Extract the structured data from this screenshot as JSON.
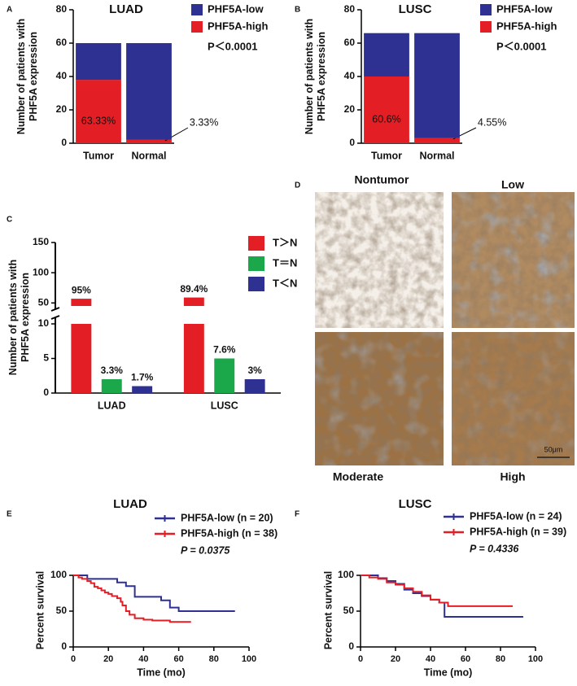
{
  "chart_data": [
    {
      "panel_label": "A",
      "type": "bar",
      "stacked": true,
      "title": "LUAD",
      "ylabel": [
        "Number of patients with",
        "PHF5A expression"
      ],
      "categories": [
        "Tumor",
        "Normal"
      ],
      "series": [
        {
          "name": "PHF5A-high",
          "color": "#e31e24",
          "values": [
            38,
            2
          ],
          "value_labels": [
            "63.33%",
            "3.33%"
          ]
        },
        {
          "name": "PHF5A-low",
          "color": "#2e3192",
          "values": [
            22,
            58
          ]
        }
      ],
      "ylim": [
        0,
        80
      ],
      "yticks": [
        0,
        20,
        40,
        60,
        80
      ],
      "annotation": "P＜0.0001"
    },
    {
      "panel_label": "B",
      "type": "bar",
      "stacked": true,
      "title": "LUSC",
      "ylabel": [
        "Number of patients with",
        "PHF5A expression"
      ],
      "categories": [
        "Tumor",
        "Normal"
      ],
      "series": [
        {
          "name": "PHF5A-high",
          "color": "#e31e24",
          "values": [
            40,
            3
          ],
          "value_labels": [
            "60.6%",
            "4.55%"
          ]
        },
        {
          "name": "PHF5A-low",
          "color": "#2e3192",
          "values": [
            26,
            63
          ]
        }
      ],
      "ylim": [
        0,
        80
      ],
      "yticks": [
        0,
        20,
        40,
        60,
        80
      ],
      "annotation": "P＜0.0001"
    },
    {
      "panel_label": "C",
      "type": "bar",
      "ylabel": [
        "Number of patients with",
        "PHF5A expression"
      ],
      "categories": [
        "LUAD",
        "LUSC"
      ],
      "series": [
        {
          "name": "T＞N",
          "color": "#e31e24",
          "values": [
            57,
            59
          ],
          "value_labels": [
            "95%",
            "89.4%"
          ]
        },
        {
          "name": "T＝N",
          "color": "#1aa84a",
          "values": [
            2,
            5
          ],
          "value_labels": [
            "3.3%",
            "7.6%"
          ]
        },
        {
          "name": "T＜N",
          "color": "#2e3192",
          "values": [
            1,
            2
          ],
          "value_labels": [
            "1.7%",
            "3%"
          ]
        }
      ],
      "ylim": [
        0,
        150
      ],
      "yticks": [
        0,
        5,
        10,
        50,
        100,
        150
      ],
      "ybreak": [
        10,
        45
      ]
    },
    {
      "panel_label": "E",
      "type": "line",
      "step": true,
      "title": "LUAD",
      "xlabel": "Time (mo)",
      "ylabel": "Percent survival",
      "series": [
        {
          "name": "PHF5A-low (n = 20)",
          "color": "#2e3192",
          "x": [
            0,
            8,
            25,
            30,
            35,
            50,
            55,
            60,
            92
          ],
          "values": [
            100,
            95,
            90,
            85,
            70,
            65,
            55,
            50,
            50
          ]
        },
        {
          "name": "PHF5A-high (n = 38)",
          "color": "#e31e24",
          "x": [
            0,
            3,
            5,
            8,
            10,
            12,
            14,
            16,
            18,
            20,
            22,
            25,
            27,
            28,
            30,
            32,
            35,
            40,
            45,
            55,
            67
          ],
          "values": [
            100,
            97,
            95,
            92,
            89,
            84,
            82,
            79,
            76,
            74,
            71,
            68,
            63,
            58,
            50,
            45,
            40,
            38,
            37,
            35,
            35
          ]
        }
      ],
      "xlim": [
        0,
        100
      ],
      "xticks": [
        0,
        20,
        40,
        60,
        80,
        100
      ],
      "ylim": [
        0,
        100
      ],
      "yticks": [
        0,
        50,
        100
      ],
      "annotation": "P = 0.0375"
    },
    {
      "panel_label": "F",
      "type": "line",
      "step": true,
      "title": "LUSC",
      "xlabel": "Time (mo)",
      "ylabel": "Percent survival",
      "series": [
        {
          "name": "PHF5A-low (n = 24)",
          "color": "#2e3192",
          "x": [
            0,
            10,
            15,
            20,
            25,
            30,
            35,
            40,
            45,
            48,
            93
          ],
          "values": [
            100,
            96,
            92,
            88,
            80,
            75,
            71,
            66,
            62,
            42,
            42
          ]
        },
        {
          "name": "PHF5A-high (n = 39)",
          "color": "#e31e24",
          "x": [
            0,
            5,
            10,
            15,
            20,
            25,
            30,
            35,
            40,
            45,
            50,
            87
          ],
          "values": [
            100,
            97,
            95,
            90,
            87,
            82,
            77,
            72,
            66,
            62,
            57,
            57
          ]
        }
      ],
      "xlim": [
        0,
        100
      ],
      "xticks": [
        0,
        20,
        40,
        60,
        80,
        100
      ],
      "ylim": [
        0,
        100
      ],
      "yticks": [
        0,
        50,
        100
      ],
      "annotation": "P = 0.4336"
    }
  ],
  "image_panel": {
    "panel_label": "D",
    "images": [
      {
        "label": "Nontumor"
      },
      {
        "label": "Low"
      },
      {
        "label": "Moderate"
      },
      {
        "label": "High"
      }
    ],
    "scale_bar": "50μm"
  }
}
